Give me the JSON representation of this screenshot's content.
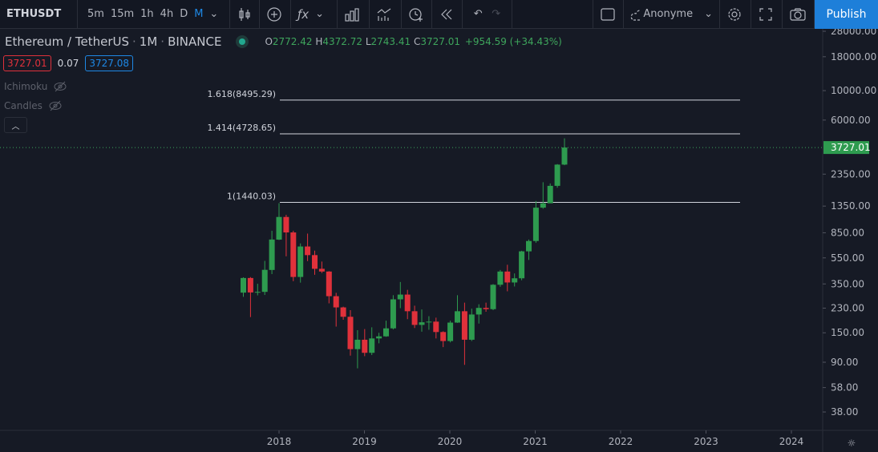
{
  "toolbar": {
    "symbol": "ETHUSDT",
    "intervals": [
      "5m",
      "15m",
      "1h",
      "4h",
      "D",
      "M"
    ],
    "active_interval": "M",
    "icons": [
      "candles-icon",
      "add-indicator-icon",
      "function-icon",
      "bar-chart-icon",
      "compare-icon",
      "alert-icon",
      "replay-icon",
      "undo-icon",
      "redo-icon"
    ],
    "layout_icon": "square-icon",
    "user": "Anonyme",
    "publish_label": "Publish"
  },
  "legend": {
    "title": "Ethereum / TetherUS",
    "interval": "1M",
    "exchange": "BINANCE",
    "o_label": "O",
    "o": "2772.42",
    "h_label": "H",
    "h": "4372.72",
    "l_label": "L",
    "l": "2743.41",
    "c_label": "C",
    "c": "3727.01",
    "change": "+954.59 (+34.43%)"
  },
  "prices": {
    "sell": "3727.01",
    "spread": "0.07",
    "buy": "3727.08"
  },
  "indicators": [
    {
      "label": "Ichimoku"
    },
    {
      "label": "Candles"
    }
  ],
  "colors": {
    "up": "#2e9b4f",
    "down": "#e0313b",
    "background": "#161a25",
    "accent": "#1e7fd9"
  },
  "chart_data": {
    "type": "candlestick",
    "scale": "log",
    "ylim": [
      30,
      32000
    ],
    "y_ticks": [
      "28000.00",
      "18000.00",
      "10000.00",
      "6000.00",
      "2350.00",
      "1350.00",
      "850.00",
      "550.00",
      "350.00",
      "230.00",
      "150.00",
      "90.00",
      "58.00",
      "38.00"
    ],
    "x_ticks": [
      "2018",
      "2019",
      "2020",
      "2021",
      "2022",
      "2023",
      "2024"
    ],
    "last_price": "3727.01",
    "start": "2017-08",
    "candles": [
      [
        301,
        393,
        280,
        388
      ],
      [
        388,
        394,
        197,
        302
      ],
      [
        302,
        351,
        287,
        305
      ],
      [
        305,
        522,
        289,
        447
      ],
      [
        446,
        880,
        415,
        756
      ],
      [
        755,
        1420,
        750,
        1118
      ],
      [
        1118,
        1160,
        565,
        855
      ],
      [
        855,
        880,
        367,
        395
      ],
      [
        395,
        707,
        358,
        670
      ],
      [
        670,
        838,
        520,
        577
      ],
      [
        577,
        623,
        410,
        455
      ],
      [
        455,
        516,
        423,
        434
      ],
      [
        434,
        437,
        250,
        283
      ],
      [
        283,
        300,
        167,
        233
      ],
      [
        233,
        236,
        188,
        198
      ],
      [
        198,
        222,
        101,
        113
      ],
      [
        113,
        157,
        81,
        133
      ],
      [
        133,
        160,
        100,
        106
      ],
      [
        106,
        165,
        102,
        136
      ],
      [
        136,
        150,
        125,
        141
      ],
      [
        141,
        185,
        140,
        162
      ],
      [
        162,
        288,
        159,
        268
      ],
      [
        268,
        362,
        230,
        291
      ],
      [
        291,
        316,
        190,
        218
      ],
      [
        218,
        240,
        163,
        172
      ],
      [
        172,
        225,
        153,
        180
      ],
      [
        180,
        200,
        158,
        182
      ],
      [
        182,
        195,
        136,
        152
      ],
      [
        152,
        154,
        117,
        130
      ],
      [
        130,
        185,
        127,
        179
      ],
      [
        179,
        288,
        178,
        218
      ],
      [
        218,
        253,
        86,
        133
      ],
      [
        133,
        228,
        130,
        206
      ],
      [
        206,
        246,
        176,
        231
      ],
      [
        231,
        253,
        216,
        226
      ],
      [
        226,
        349,
        222,
        345
      ],
      [
        345,
        446,
        333,
        434
      ],
      [
        434,
        488,
        308,
        359
      ],
      [
        359,
        420,
        335,
        386
      ],
      [
        386,
        622,
        373,
        616
      ],
      [
        616,
        756,
        530,
        737
      ],
      [
        737,
        1475,
        715,
        1314
      ],
      [
        1314,
        2042,
        1290,
        1417
      ],
      [
        1417,
        2000,
        1437,
        1918
      ],
      [
        1918,
        2797,
        1856,
        2772
      ],
      [
        2772,
        4372,
        2743,
        3727
      ]
    ],
    "fib_levels": [
      {
        "label": "1.618(8495.29)",
        "value": 8495.29
      },
      {
        "label": "1.414(4728.65)",
        "value": 4728.65
      },
      {
        "label": "1(1440.03)",
        "value": 1440.03
      }
    ]
  }
}
